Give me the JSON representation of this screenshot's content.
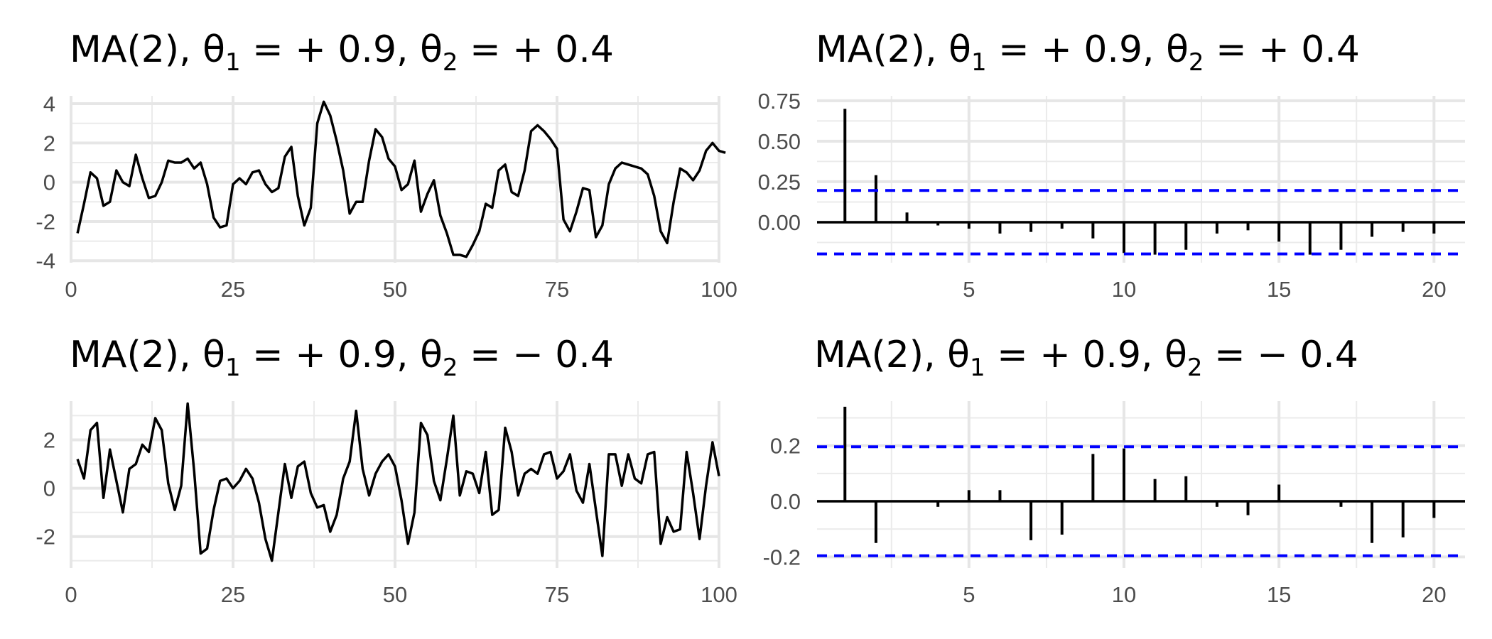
{
  "panels": [
    {
      "title": {
        "main": "MA(2), θ",
        "s1": "1",
        "mid": " = + 0.9, θ",
        "s2": "2",
        "end": " = + 0.4"
      },
      "chart_data": {
        "type": "line",
        "title": "MA(2), θ1 = + 0.9, θ2 = + 0.4",
        "xlim": [
          0,
          100
        ],
        "ylim": [
          -4.1,
          4.4
        ],
        "x_ticks": [
          0,
          25,
          50,
          75,
          100
        ],
        "y_ticks": [
          -4,
          -2,
          0,
          2,
          4
        ],
        "x_tick_labels": [
          "0",
          "25",
          "50",
          "75",
          "100"
        ],
        "y_tick_labels": [
          "-4",
          "-2",
          "0",
          "2",
          "4"
        ],
        "grid": true,
        "color": "#000000",
        "y": [
          -2.6,
          -1.1,
          0.5,
          0.2,
          -1.2,
          -1.0,
          0.6,
          0.0,
          -0.2,
          1.4,
          0.2,
          -0.8,
          -0.7,
          0.0,
          1.1,
          1.0,
          1.0,
          1.2,
          0.7,
          1.0,
          -0.1,
          -1.8,
          -2.3,
          -2.2,
          -0.1,
          0.2,
          -0.1,
          0.5,
          0.6,
          -0.1,
          -0.5,
          -0.3,
          1.3,
          1.8,
          -0.7,
          -2.2,
          -1.3,
          3.0,
          4.1,
          3.4,
          2.1,
          0.6,
          -1.6,
          -1.0,
          -1.0,
          1.1,
          2.7,
          2.3,
          1.2,
          0.8,
          -0.4,
          -0.1,
          1.1,
          -1.5,
          -0.6,
          0.1,
          -1.7,
          -2.6,
          -3.7,
          -3.7,
          -3.8,
          -3.2,
          -2.5,
          -1.1,
          -1.3,
          0.6,
          0.9,
          -0.5,
          -0.7,
          0.6,
          2.6,
          2.9,
          2.6,
          2.2,
          1.7,
          -1.9,
          -2.5,
          -1.5,
          -0.3,
          -0.4,
          -2.8,
          -2.2,
          -0.1,
          0.7,
          1.0,
          0.9,
          0.8,
          0.7,
          0.4,
          -0.7,
          -2.5,
          -3.1,
          -1.0,
          0.7,
          0.5,
          0.1,
          0.6,
          1.6,
          2.0,
          1.6,
          1.5
        ]
      }
    },
    {
      "title": {
        "main": "MA(2), θ",
        "s1": "1",
        "mid": " = + 0.9, θ",
        "s2": "2",
        "end": " = + 0.4"
      },
      "chart_data": {
        "type": "bar",
        "title": "MA(2), θ1 = + 0.9, θ2 = + 0.4",
        "xlim": [
          0.1,
          21
        ],
        "ylim": [
          -0.25,
          0.78
        ],
        "x_ticks": [
          5,
          10,
          15,
          20
        ],
        "y_ticks": [
          0,
          0.25,
          0.5,
          0.75
        ],
        "x_tick_labels": [
          "5",
          "10",
          "15",
          "20"
        ],
        "y_tick_labels": [
          "0.00",
          "0.25",
          "0.50",
          "0.75"
        ],
        "confidence_bounds": [
          0.196,
          -0.196
        ],
        "bound_color": "#0000ff",
        "grid": true,
        "lags": [
          1,
          2,
          3,
          4,
          5,
          6,
          7,
          8,
          9,
          10,
          11,
          12,
          13,
          14,
          15,
          16,
          17,
          18,
          19,
          20
        ],
        "acf": [
          0.7,
          0.29,
          0.06,
          -0.02,
          -0.04,
          -0.07,
          -0.06,
          -0.04,
          -0.1,
          -0.19,
          -0.2,
          -0.17,
          -0.07,
          -0.05,
          -0.12,
          -0.2,
          -0.17,
          -0.09,
          -0.06,
          -0.07
        ]
      }
    },
    {
      "title": {
        "main": "MA(2), θ",
        "s1": "1",
        "mid": " = + 0.9, θ",
        "s2": "2",
        "end": " = − 0.4"
      },
      "chart_data": {
        "type": "line",
        "title": "MA(2), θ1 = + 0.9, θ2 = − 0.4",
        "xlim": [
          0,
          100
        ],
        "ylim": [
          -3.3,
          3.6
        ],
        "x_ticks": [
          0,
          25,
          50,
          75,
          100
        ],
        "y_ticks": [
          -2,
          0,
          2
        ],
        "x_tick_labels": [
          "0",
          "25",
          "50",
          "75",
          "100"
        ],
        "y_tick_labels": [
          "-2",
          "0",
          "2"
        ],
        "grid": true,
        "color": "#000000",
        "y": [
          1.2,
          0.4,
          2.4,
          2.7,
          -0.4,
          1.6,
          0.3,
          -1.0,
          0.8,
          1.0,
          1.8,
          1.5,
          2.9,
          2.4,
          0.2,
          -0.9,
          0.1,
          3.5,
          0.7,
          -2.7,
          -2.5,
          -0.9,
          0.3,
          0.4,
          0.0,
          0.3,
          0.8,
          0.4,
          -0.6,
          -2.1,
          -3.0,
          -1.0,
          1.0,
          -0.4,
          0.9,
          1.1,
          -0.2,
          -0.8,
          -0.7,
          -1.8,
          -1.1,
          0.4,
          1.1,
          3.2,
          0.8,
          -0.3,
          0.6,
          1.1,
          1.4,
          0.9,
          -0.5,
          -2.3,
          -1.0,
          2.7,
          2.2,
          0.3,
          -0.5,
          1.2,
          3.0,
          -0.3,
          0.7,
          0.6,
          -0.2,
          1.5,
          -1.1,
          -0.9,
          2.5,
          1.5,
          -0.3,
          0.6,
          0.8,
          0.6,
          1.4,
          1.5,
          0.4,
          0.7,
          1.4,
          -0.1,
          -0.6,
          1.0,
          -0.9,
          -2.8,
          1.4,
          1.4,
          0.1,
          1.4,
          0.4,
          0.2,
          1.4,
          1.5,
          -2.3,
          -1.2,
          -1.8,
          -1.7,
          1.5,
          -0.2,
          -2.1,
          0.1,
          1.9,
          0.5
        ]
      }
    },
    {
      "title": {
        "main": "MA(2), θ",
        "s1": "1",
        "mid": " = + 0.9, θ",
        "s2": "2",
        "end": " = − 0.4"
      },
      "chart_data": {
        "type": "bar",
        "title": "MA(2), θ1 = + 0.9, θ2 = − 0.4",
        "xlim": [
          0.1,
          21
        ],
        "ylim": [
          -0.24,
          0.36
        ],
        "x_ticks": [
          5,
          10,
          15,
          20
        ],
        "y_ticks": [
          -0.2,
          0,
          0.2
        ],
        "x_tick_labels": [
          "5",
          "10",
          "15",
          "20"
        ],
        "y_tick_labels": [
          "-0.2",
          "0.0",
          "0.2"
        ],
        "confidence_bounds": [
          0.196,
          -0.196
        ],
        "bound_color": "#0000ff",
        "grid": true,
        "lags": [
          1,
          2,
          3,
          4,
          5,
          6,
          7,
          8,
          9,
          10,
          11,
          12,
          13,
          14,
          15,
          16,
          17,
          18,
          19,
          20
        ],
        "acf": [
          0.34,
          -0.15,
          0.0,
          -0.02,
          0.04,
          0.04,
          -0.14,
          -0.12,
          0.17,
          0.19,
          0.08,
          0.09,
          -0.02,
          -0.05,
          0.06,
          0.0,
          -0.02,
          -0.15,
          -0.13,
          -0.06
        ]
      }
    }
  ]
}
